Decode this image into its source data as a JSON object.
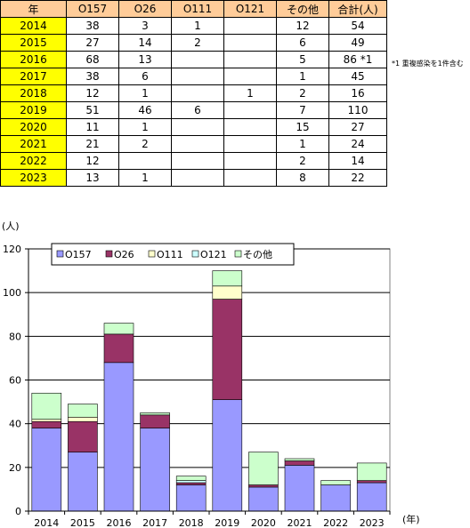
{
  "table": {
    "headers": [
      "年",
      "O157",
      "O26",
      "O111",
      "O121",
      "その他",
      "合計(人)"
    ],
    "rows": [
      [
        "2014",
        "38",
        "3",
        "1",
        "",
        "12",
        "54"
      ],
      [
        "2015",
        "27",
        "14",
        "2",
        "",
        "6",
        "49"
      ],
      [
        "2016",
        "68",
        "13",
        "",
        "",
        "5",
        "86 *1"
      ],
      [
        "2017",
        "38",
        "6",
        "",
        "",
        "1",
        "45"
      ],
      [
        "2018",
        "12",
        "1",
        "",
        "1",
        "2",
        "16"
      ],
      [
        "2019",
        "51",
        "46",
        "6",
        "",
        "7",
        "110"
      ],
      [
        "2020",
        "11",
        "1",
        "",
        "",
        "15",
        "27"
      ],
      [
        "2021",
        "21",
        "2",
        "",
        "",
        "1",
        "24"
      ],
      [
        "2022",
        "12",
        "",
        "",
        "",
        "2",
        "14"
      ],
      [
        "2023",
        "13",
        "1",
        "",
        "",
        "8",
        "22"
      ]
    ],
    "note": "*1 重複感染を1件含む"
  },
  "colors": {
    "header_bg": "#ffcc99",
    "year_bg": "#ffff00",
    "O157": "#9999ff",
    "O26": "#993366",
    "O111": "#ffffcc",
    "O121": "#ccffff",
    "other": "#ccffcc"
  },
  "chart_data": {
    "type": "bar",
    "stacked": true,
    "categories": [
      "2014",
      "2015",
      "2016",
      "2017",
      "2018",
      "2019",
      "2020",
      "2021",
      "2022",
      "2023"
    ],
    "series": [
      {
        "name": "O157",
        "values": [
          38,
          27,
          68,
          38,
          12,
          51,
          11,
          21,
          12,
          13
        ],
        "color": "#9999ff"
      },
      {
        "name": "O26",
        "values": [
          3,
          14,
          13,
          6,
          1,
          46,
          1,
          2,
          0,
          1
        ],
        "color": "#993366"
      },
      {
        "name": "O111",
        "values": [
          1,
          2,
          0,
          0,
          0,
          6,
          0,
          0,
          0,
          0
        ],
        "color": "#ffffcc"
      },
      {
        "name": "O121",
        "values": [
          0,
          0,
          0,
          0,
          1,
          0,
          0,
          0,
          0,
          0
        ],
        "color": "#ccffff"
      },
      {
        "name": "その他",
        "values": [
          12,
          6,
          5,
          1,
          2,
          7,
          15,
          1,
          2,
          8
        ],
        "color": "#ccffcc"
      }
    ],
    "ylabel": "(人)",
    "xlabel": "(年)",
    "ylim": [
      0,
      120
    ],
    "yticks": [
      0,
      20,
      40,
      60,
      80,
      100,
      120
    ],
    "grid": true,
    "legend": "top-left"
  }
}
